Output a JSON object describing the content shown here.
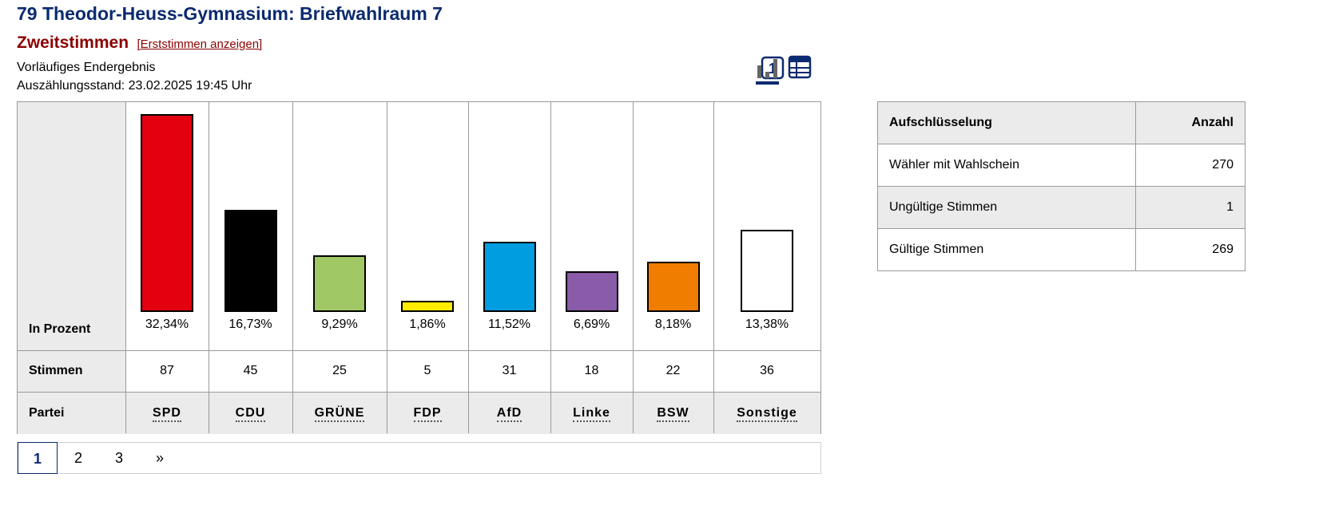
{
  "header": {
    "title": "79 Theodor-Heuss-Gymnasium: Briefwahlraum 7",
    "subtitle": "Zweitstimmen",
    "toggle_link": "[Erststimmen anzeigen]",
    "status": "Vorläufiges Endergebnis",
    "timestamp": "Auszählungsstand: 23.02.2025 19:45 Uhr"
  },
  "view_icons": [
    {
      "name": "number-one-icon",
      "label": "1",
      "active": false
    },
    {
      "name": "bar-chart-icon",
      "active": true
    },
    {
      "name": "table-icon",
      "active": false
    }
  ],
  "chart_data": {
    "type": "bar",
    "categories": [
      "SPD",
      "CDU",
      "GRÜNE",
      "FDP",
      "AfD",
      "Linke",
      "BSW",
      "Sonstige"
    ],
    "values": [
      32.34,
      16.73,
      9.29,
      1.86,
      11.52,
      6.69,
      8.18,
      13.38
    ],
    "value_labels": [
      "32,34%",
      "16,73%",
      "9,29%",
      "1,86%",
      "11,52%",
      "6,69%",
      "8,18%",
      "13,38%"
    ],
    "votes": [
      "87",
      "45",
      "25",
      "5",
      "31",
      "18",
      "22",
      "36"
    ],
    "colors": [
      "#e3000f",
      "#000000",
      "#a0c865",
      "#ffed00",
      "#009ee0",
      "#8a5ba8",
      "#f07c00",
      "#ffffff"
    ],
    "row_labels": {
      "percent": "In Prozent",
      "votes": "Stimmen",
      "party": "Partei"
    },
    "ylim": [
      0,
      32.34
    ]
  },
  "pagination": {
    "pages": [
      "1",
      "2",
      "3"
    ],
    "next": "»",
    "active": "1"
  },
  "breakdown": {
    "headers": [
      "Aufschlüsselung",
      "Anzahl"
    ],
    "rows": [
      {
        "label": "Wähler mit Wahlschein",
        "value": "270"
      },
      {
        "label": "Ungültige Stimmen",
        "value": "1"
      },
      {
        "label": "Gültige Stimmen",
        "value": "269"
      }
    ]
  }
}
